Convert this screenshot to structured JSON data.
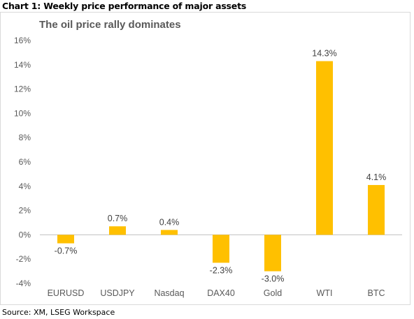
{
  "heading": "Chart 1: Weekly price performance of major assets",
  "source": "Source: XM, LSEG Workspace",
  "colors": {
    "bar": "#FFC000",
    "axis": "#bfbfbf"
  },
  "chart_data": {
    "type": "bar",
    "title": "The oil price rally dominates",
    "categories": [
      "EURUSD",
      "USDJPY",
      "Nasdaq",
      "DAX40",
      "Gold",
      "WTI",
      "BTC"
    ],
    "values": [
      -0.7,
      0.7,
      0.4,
      -2.3,
      -3.0,
      14.3,
      4.1
    ],
    "data_labels": [
      "-0.7%",
      "0.7%",
      "0.4%",
      "-2.3%",
      "-3.0%",
      "14.3%",
      "4.1%"
    ],
    "ylim": [
      -4,
      16
    ],
    "yticks": [
      -4,
      -2,
      0,
      2,
      4,
      6,
      8,
      10,
      12,
      14,
      16
    ],
    "ytick_labels": [
      "-4%",
      "-2%",
      "0%",
      "2%",
      "4%",
      "6%",
      "8%",
      "10%",
      "12%",
      "14%",
      "16%"
    ],
    "xlabel": "",
    "ylabel": "",
    "grid": false,
    "legend": "none"
  }
}
